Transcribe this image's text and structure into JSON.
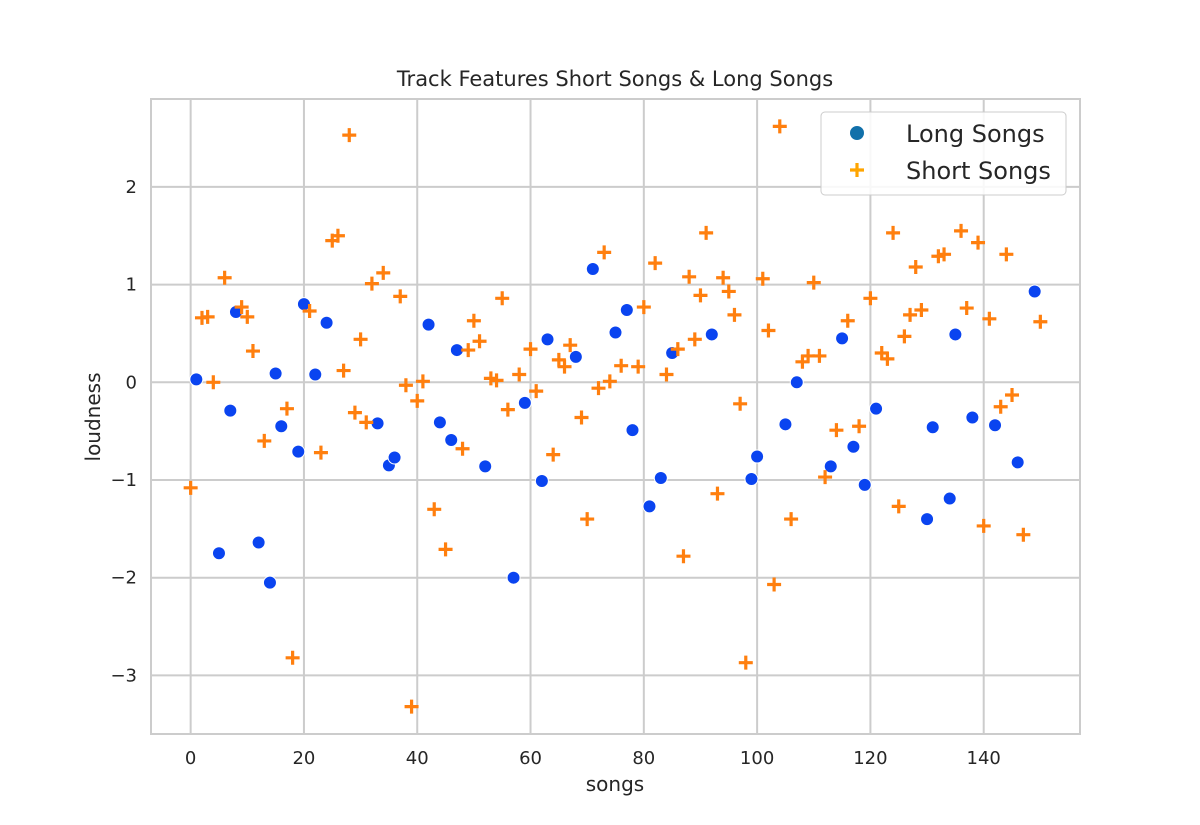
{
  "chart_data": {
    "type": "scatter",
    "title": "Track Features Short Songs & Long Songs",
    "xlabel": "songs",
    "ylabel": "loudness",
    "xlim": [
      -7,
      157
    ],
    "ylim": [
      -3.6,
      2.9
    ],
    "xticks": [
      0,
      20,
      40,
      60,
      80,
      100,
      120,
      140
    ],
    "yticks": [
      -3,
      -2,
      -1,
      0,
      1,
      2
    ],
    "grid": true,
    "legend": "upper right",
    "series": [
      {
        "name": "Long Songs",
        "marker": "circle",
        "color": "#0a44f0",
        "legend_color": "#1170aa",
        "points": [
          [
            1,
            0.03
          ],
          [
            5,
            -1.75
          ],
          [
            7,
            -0.29
          ],
          [
            8,
            0.72
          ],
          [
            12,
            -1.64
          ],
          [
            14,
            -2.05
          ],
          [
            15,
            0.09
          ],
          [
            16,
            -0.45
          ],
          [
            19,
            -0.71
          ],
          [
            20,
            0.8
          ],
          [
            22,
            0.08
          ],
          [
            24,
            0.61
          ],
          [
            33,
            -0.42
          ],
          [
            35,
            -0.85
          ],
          [
            36,
            -0.77
          ],
          [
            42,
            0.59
          ],
          [
            44,
            -0.41
          ],
          [
            46,
            -0.59
          ],
          [
            47,
            0.33
          ],
          [
            52,
            -0.86
          ],
          [
            57,
            -2.0
          ],
          [
            59,
            -0.21
          ],
          [
            62,
            -1.01
          ],
          [
            63,
            0.44
          ],
          [
            68,
            0.26
          ],
          [
            71,
            1.16
          ],
          [
            75,
            0.51
          ],
          [
            77,
            0.74
          ],
          [
            78,
            -0.49
          ],
          [
            81,
            -1.27
          ],
          [
            83,
            -0.98
          ],
          [
            85,
            0.3
          ],
          [
            92,
            0.49
          ],
          [
            99,
            -0.99
          ],
          [
            100,
            -0.76
          ],
          [
            105,
            -0.43
          ],
          [
            107,
            -0.0
          ],
          [
            113,
            -0.86
          ],
          [
            115,
            0.45
          ],
          [
            117,
            -0.66
          ],
          [
            119,
            -1.05
          ],
          [
            121,
            -0.27
          ],
          [
            130,
            -1.4
          ],
          [
            131,
            -0.46
          ],
          [
            134,
            -1.19
          ],
          [
            135,
            0.49
          ],
          [
            138,
            -0.36
          ],
          [
            142,
            -0.44
          ],
          [
            146,
            -0.82
          ],
          [
            149,
            0.93
          ]
        ]
      },
      {
        "name": "Short Songs",
        "marker": "plus",
        "color": "#ff7f0e",
        "legend_color": "#ffa500",
        "points": [
          [
            0,
            -1.08
          ],
          [
            2,
            0.66
          ],
          [
            3,
            0.67
          ],
          [
            4,
            0.0
          ],
          [
            6,
            1.07
          ],
          [
            9,
            0.77
          ],
          [
            10,
            0.67
          ],
          [
            11,
            0.32
          ],
          [
            13,
            -0.6
          ],
          [
            17,
            -0.27
          ],
          [
            18,
            -2.82
          ],
          [
            21,
            0.73
          ],
          [
            23,
            -0.72
          ],
          [
            25,
            1.45
          ],
          [
            26,
            1.5
          ],
          [
            27,
            0.12
          ],
          [
            28,
            2.53
          ],
          [
            29,
            -0.31
          ],
          [
            30,
            0.44
          ],
          [
            31,
            -0.41
          ],
          [
            32,
            1.01
          ],
          [
            34,
            1.12
          ],
          [
            37,
            0.88
          ],
          [
            38,
            -0.03
          ],
          [
            39,
            -3.32
          ],
          [
            40,
            -0.19
          ],
          [
            41,
            0.01
          ],
          [
            43,
            -1.3
          ],
          [
            45,
            -1.71
          ],
          [
            48,
            -0.68
          ],
          [
            49,
            0.33
          ],
          [
            50,
            0.63
          ],
          [
            51,
            0.42
          ],
          [
            53,
            0.04
          ],
          [
            54,
            0.02
          ],
          [
            55,
            0.86
          ],
          [
            56,
            -0.28
          ],
          [
            58,
            0.08
          ],
          [
            60,
            0.34
          ],
          [
            61,
            -0.09
          ],
          [
            64,
            -0.74
          ],
          [
            65,
            0.23
          ],
          [
            66,
            0.16
          ],
          [
            67,
            0.38
          ],
          [
            69,
            -0.36
          ],
          [
            70,
            -1.4
          ],
          [
            72,
            -0.06
          ],
          [
            73,
            1.33
          ],
          [
            74,
            0.01
          ],
          [
            76,
            0.17
          ],
          [
            79,
            0.16
          ],
          [
            80,
            0.77
          ],
          [
            82,
            1.22
          ],
          [
            84,
            0.08
          ],
          [
            86,
            0.34
          ],
          [
            87,
            -1.78
          ],
          [
            88,
            1.08
          ],
          [
            89,
            0.44
          ],
          [
            90,
            0.89
          ],
          [
            91,
            1.53
          ],
          [
            93,
            -1.14
          ],
          [
            94,
            1.07
          ],
          [
            95,
            0.93
          ],
          [
            96,
            0.69
          ],
          [
            97,
            -0.22
          ],
          [
            98,
            -2.87
          ],
          [
            101,
            1.06
          ],
          [
            102,
            0.53
          ],
          [
            103,
            -2.07
          ],
          [
            104,
            2.62
          ],
          [
            106,
            -1.4
          ],
          [
            108,
            0.21
          ],
          [
            109,
            0.27
          ],
          [
            110,
            1.02
          ],
          [
            111,
            0.27
          ],
          [
            112,
            -0.97
          ],
          [
            114,
            -0.49
          ],
          [
            116,
            0.63
          ],
          [
            118,
            -0.45
          ],
          [
            120,
            0.86
          ],
          [
            122,
            0.3
          ],
          [
            123,
            0.24
          ],
          [
            124,
            1.53
          ],
          [
            125,
            -1.27
          ],
          [
            126,
            0.47
          ],
          [
            127,
            0.69
          ],
          [
            128,
            1.18
          ],
          [
            129,
            0.74
          ],
          [
            132,
            1.29
          ],
          [
            133,
            1.31
          ],
          [
            136,
            1.55
          ],
          [
            137,
            0.76
          ],
          [
            139,
            1.43
          ],
          [
            140,
            -1.47
          ],
          [
            141,
            0.65
          ],
          [
            143,
            -0.25
          ],
          [
            144,
            1.31
          ],
          [
            145,
            -0.13
          ],
          [
            147,
            -1.56
          ],
          [
            150,
            0.62
          ]
        ]
      }
    ]
  }
}
